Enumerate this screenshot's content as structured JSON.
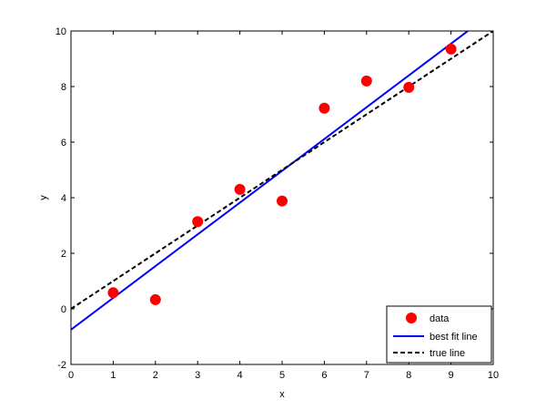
{
  "chart_data": {
    "type": "scatter",
    "xlabel": "x",
    "ylabel": "y",
    "xlim": [
      0,
      10
    ],
    "ylim": [
      -2,
      10
    ],
    "xticks": [
      "0",
      "1",
      "2",
      "3",
      "4",
      "5",
      "6",
      "7",
      "8",
      "9",
      "10"
    ],
    "yticks": [
      "-2",
      "0",
      "2",
      "4",
      "6",
      "8",
      "10"
    ],
    "grid": false,
    "legend_position": "bottom-right",
    "series": [
      {
        "name": "data",
        "kind": "scatter",
        "color": "#ff0000",
        "x": [
          1,
          2,
          3,
          4,
          5,
          6,
          7,
          8,
          9
        ],
        "y": [
          0.58,
          0.33,
          3.14,
          4.3,
          3.88,
          7.22,
          8.2,
          7.97,
          9.35
        ]
      },
      {
        "name": "best fit line",
        "kind": "line",
        "color": "#0000ff",
        "style": "solid",
        "x": [
          0,
          9.4
        ],
        "y": [
          -0.75,
          10
        ]
      },
      {
        "name": "true line",
        "kind": "line",
        "color": "#000000",
        "style": "dashed",
        "x": [
          0,
          10
        ],
        "y": [
          0,
          10
        ]
      }
    ]
  }
}
